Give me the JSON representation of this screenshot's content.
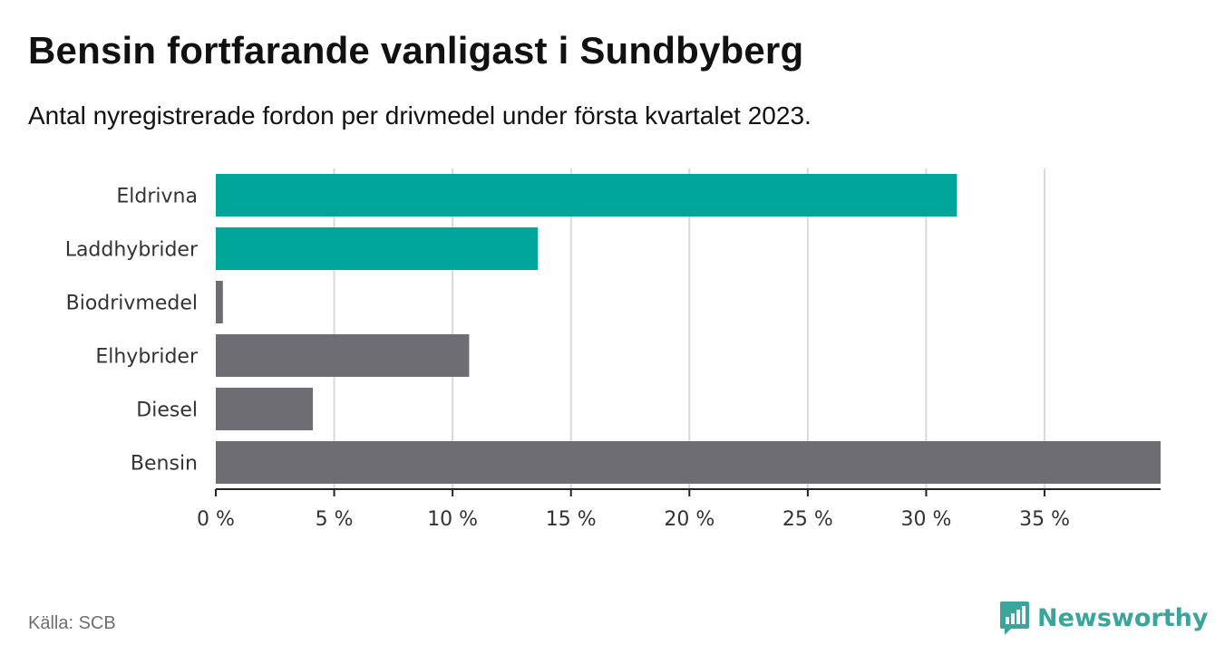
{
  "header": {
    "title": "Bensin fortfarande vanligast i Sundbyberg",
    "subtitle": "Antal nyregistrerade fordon per drivmedel under första kvartalet 2023."
  },
  "chart_data": {
    "type": "bar",
    "orientation": "horizontal",
    "categories": [
      "Eldrivna",
      "Laddhybrider",
      "Biodrivmedel",
      "Elhybrider",
      "Diesel",
      "Bensin"
    ],
    "values": [
      31.3,
      13.6,
      0.3,
      10.7,
      4.1,
      39.9
    ],
    "colors": [
      "#00a59a",
      "#00a59a",
      "#6e6d73",
      "#6e6d73",
      "#6e6d73",
      "#6e6d73"
    ],
    "xlim": [
      0,
      39.9
    ],
    "xticks": [
      0,
      5,
      10,
      15,
      20,
      25,
      30,
      35
    ],
    "xtick_labels": [
      "0 %",
      "5 %",
      "10 %",
      "15 %",
      "20 %",
      "25 %",
      "30 %",
      "35 %"
    ],
    "grid": true,
    "xlabel": "",
    "ylabel": ""
  },
  "footer": {
    "source": "Källa: SCB",
    "brand": "Newsworthy",
    "brand_icon": "newsworthy-logo-icon"
  }
}
